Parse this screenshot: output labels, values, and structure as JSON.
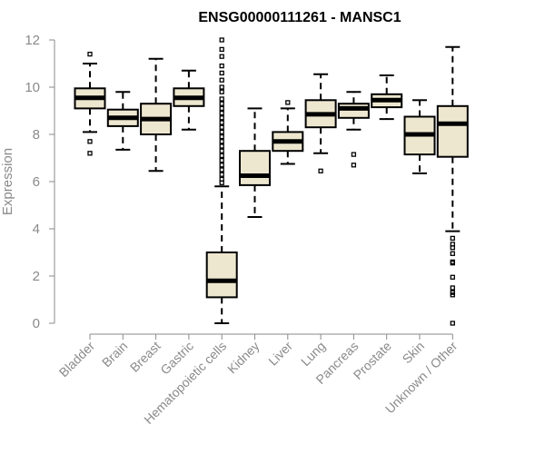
{
  "chart_data": {
    "type": "box",
    "title": "ENSG00000111261 - MANSC1",
    "xlabel": "",
    "ylabel": "Expression",
    "ylim": [
      0,
      12
    ],
    "yticks": [
      "0",
      "2",
      "4",
      "6",
      "8",
      "10",
      "12"
    ],
    "categories": [
      "Bladder",
      "Brain",
      "Breast",
      "Gastric",
      "Hematopoietic cells",
      "Kidney",
      "Liver",
      "Lung",
      "Pancreas",
      "Prostate",
      "Skin",
      "Unknown / Other"
    ],
    "boxes": [
      {
        "category": "Bladder",
        "whisker_low": 8.1,
        "q1": 9.1,
        "median": 9.55,
        "q3": 9.95,
        "whisker_high": 11.0,
        "outliers": [
          11.4,
          7.7,
          7.2
        ]
      },
      {
        "category": "Brain",
        "whisker_low": 7.35,
        "q1": 8.35,
        "median": 8.7,
        "q3": 9.05,
        "whisker_high": 9.8,
        "outliers": []
      },
      {
        "category": "Breast",
        "whisker_low": 6.45,
        "q1": 8.0,
        "median": 8.65,
        "q3": 9.3,
        "whisker_high": 11.2,
        "outliers": []
      },
      {
        "category": "Gastric",
        "whisker_low": 8.2,
        "q1": 9.2,
        "median": 9.55,
        "q3": 9.95,
        "whisker_high": 10.7,
        "outliers": []
      },
      {
        "category": "Hematopoietic cells",
        "whisker_low": 0.0,
        "q1": 1.1,
        "median": 1.8,
        "q3": 3.0,
        "whisker_high": 5.8,
        "outliers": [
          12.0,
          11.6,
          11.3,
          10.9,
          10.6,
          10.3,
          10.0,
          9.8,
          9.5,
          9.3,
          9.1,
          8.9,
          8.7,
          8.5,
          8.3,
          8.1,
          7.9,
          7.7,
          7.5,
          7.3,
          7.1,
          6.9,
          6.7,
          6.5,
          6.3,
          6.1,
          5.95
        ]
      },
      {
        "category": "Kidney",
        "whisker_low": 4.5,
        "q1": 5.85,
        "median": 6.25,
        "q3": 7.3,
        "whisker_high": 9.1,
        "outliers": []
      },
      {
        "category": "Liver",
        "whisker_low": 6.75,
        "q1": 7.3,
        "median": 7.7,
        "q3": 8.1,
        "whisker_high": 9.1,
        "outliers": [
          9.35
        ]
      },
      {
        "category": "Lung",
        "whisker_low": 7.2,
        "q1": 8.3,
        "median": 8.85,
        "q3": 9.45,
        "whisker_high": 10.55,
        "outliers": [
          6.45
        ]
      },
      {
        "category": "Pancreas",
        "whisker_low": 8.2,
        "q1": 8.7,
        "median": 9.1,
        "q3": 9.3,
        "whisker_high": 9.8,
        "outliers": [
          7.15,
          6.7
        ]
      },
      {
        "category": "Prostate",
        "whisker_low": 8.65,
        "q1": 9.15,
        "median": 9.45,
        "q3": 9.7,
        "whisker_high": 10.5,
        "outliers": []
      },
      {
        "category": "Skin",
        "whisker_low": 6.35,
        "q1": 7.15,
        "median": 8.0,
        "q3": 8.75,
        "whisker_high": 9.45,
        "outliers": []
      },
      {
        "category": "Unknown / Other",
        "whisker_low": 3.9,
        "q1": 7.05,
        "median": 8.45,
        "q3": 9.2,
        "whisker_high": 11.7,
        "outliers": [
          3.6,
          3.35,
          3.2,
          2.95,
          2.6,
          2.55,
          1.95,
          1.5,
          1.3,
          1.2,
          0.0
        ]
      }
    ],
    "box_fill": "#eee7d0",
    "stroke_color": "#000000",
    "axis_color": "#8a8a8a",
    "grid": false,
    "legend": "none"
  }
}
